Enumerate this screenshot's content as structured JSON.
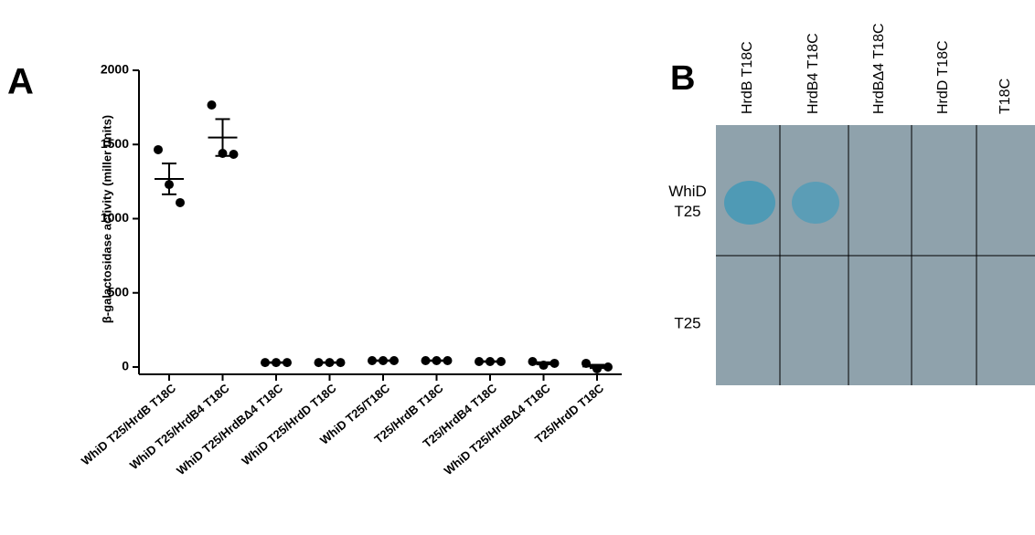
{
  "chart_data": {
    "type": "dotplot",
    "panel_label": "A",
    "y_label": "β-galactosidase activity (miller units)",
    "categories": [
      "WhiD T25/HrdB T18C",
      "WhiD T25/HrdB4 T18C",
      "WhiD T25/HrdBΔ4 T18C",
      "WhiD T25/HrdD T18C",
      "WhiD T25/T18C",
      "T25/HrdB T18C",
      "T25/HrdB4 T18C",
      "WhiD T25/HrdBΔ4 T18C",
      "T25/HrdD T18C"
    ],
    "points": [
      [
        1465,
        1230,
        1108
      ],
      [
        1766,
        1440,
        1434
      ],
      [
        30,
        30,
        30
      ],
      [
        30,
        30,
        30
      ],
      [
        43,
        43,
        43
      ],
      [
        43,
        43,
        43
      ],
      [
        37,
        37,
        37
      ],
      [
        37,
        12,
        25
      ],
      [
        25,
        -12,
        0
      ]
    ],
    "means": [
      1268,
      1547,
      30,
      30,
      43,
      43,
      37,
      25,
      4
    ],
    "sem": [
      104,
      124,
      2,
      2,
      2,
      2,
      2,
      7,
      11
    ],
    "color": "#000000",
    "ylim": [
      0,
      2000
    ],
    "yticks": [
      0,
      500,
      1000,
      1500,
      2000
    ]
  },
  "panel_b": {
    "panel_label": "B",
    "columns": [
      "HrdB  T18C",
      "HrdB4 T18C",
      "HrdBΔ4 T18C",
      "HrdD T18C",
      "T18C"
    ],
    "rows": [
      "WhiD T25",
      "T25"
    ]
  }
}
